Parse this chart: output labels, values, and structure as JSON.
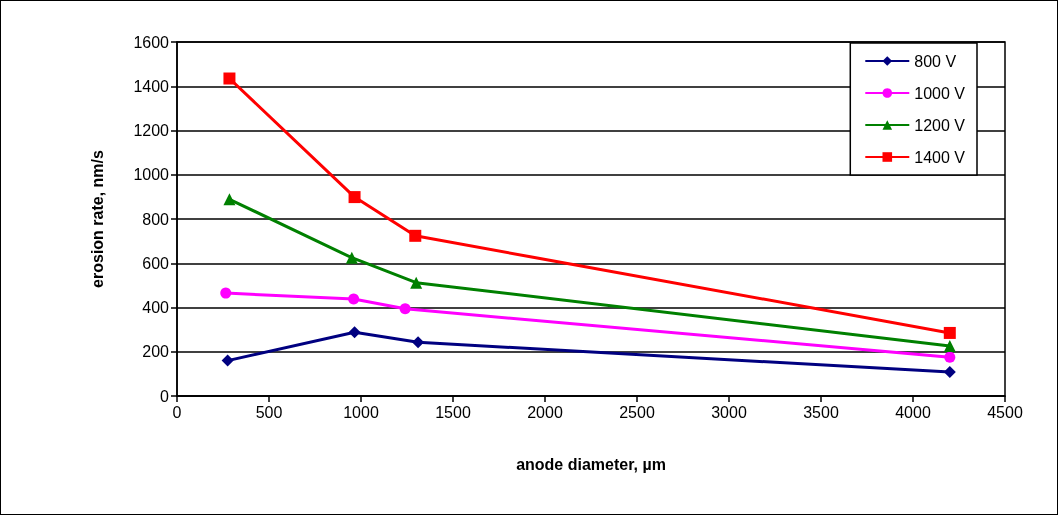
{
  "chart_data": {
    "type": "line",
    "xlabel": "anode diameter, µm",
    "ylabel": "erosion rate, nm/s",
    "xlim": [
      0,
      4500
    ],
    "xticks": [
      0,
      500,
      1000,
      1500,
      2000,
      2500,
      3000,
      3500,
      4000,
      4500
    ],
    "ylim": [
      0,
      1600
    ],
    "yticks": [
      0,
      200,
      400,
      600,
      800,
      1000,
      1200,
      1400,
      1600
    ],
    "grid": "y",
    "legend": "top right",
    "line_style": "solid",
    "series": [
      {
        "name": "800 V",
        "color": "#000080",
        "marker": "diamond",
        "x": [
          275,
          965,
          1310,
          4200
        ],
        "values": [
          160,
          288,
          243,
          108
        ]
      },
      {
        "name": "1000 V",
        "color": "#ff00ff",
        "marker": "circle",
        "x": [
          265,
          960,
          1240,
          4200
        ],
        "values": [
          465,
          438,
          394,
          175
        ]
      },
      {
        "name": "1200 V",
        "color": "#008000",
        "marker": "triangle",
        "x": [
          285,
          950,
          1300,
          4200
        ],
        "values": [
          889,
          625,
          512,
          226
        ]
      },
      {
        "name": "1400 V",
        "color": "#ff0000",
        "marker": "square",
        "x": [
          285,
          965,
          1295,
          4200
        ],
        "values": [
          1435,
          899,
          724,
          285
        ]
      }
    ]
  }
}
